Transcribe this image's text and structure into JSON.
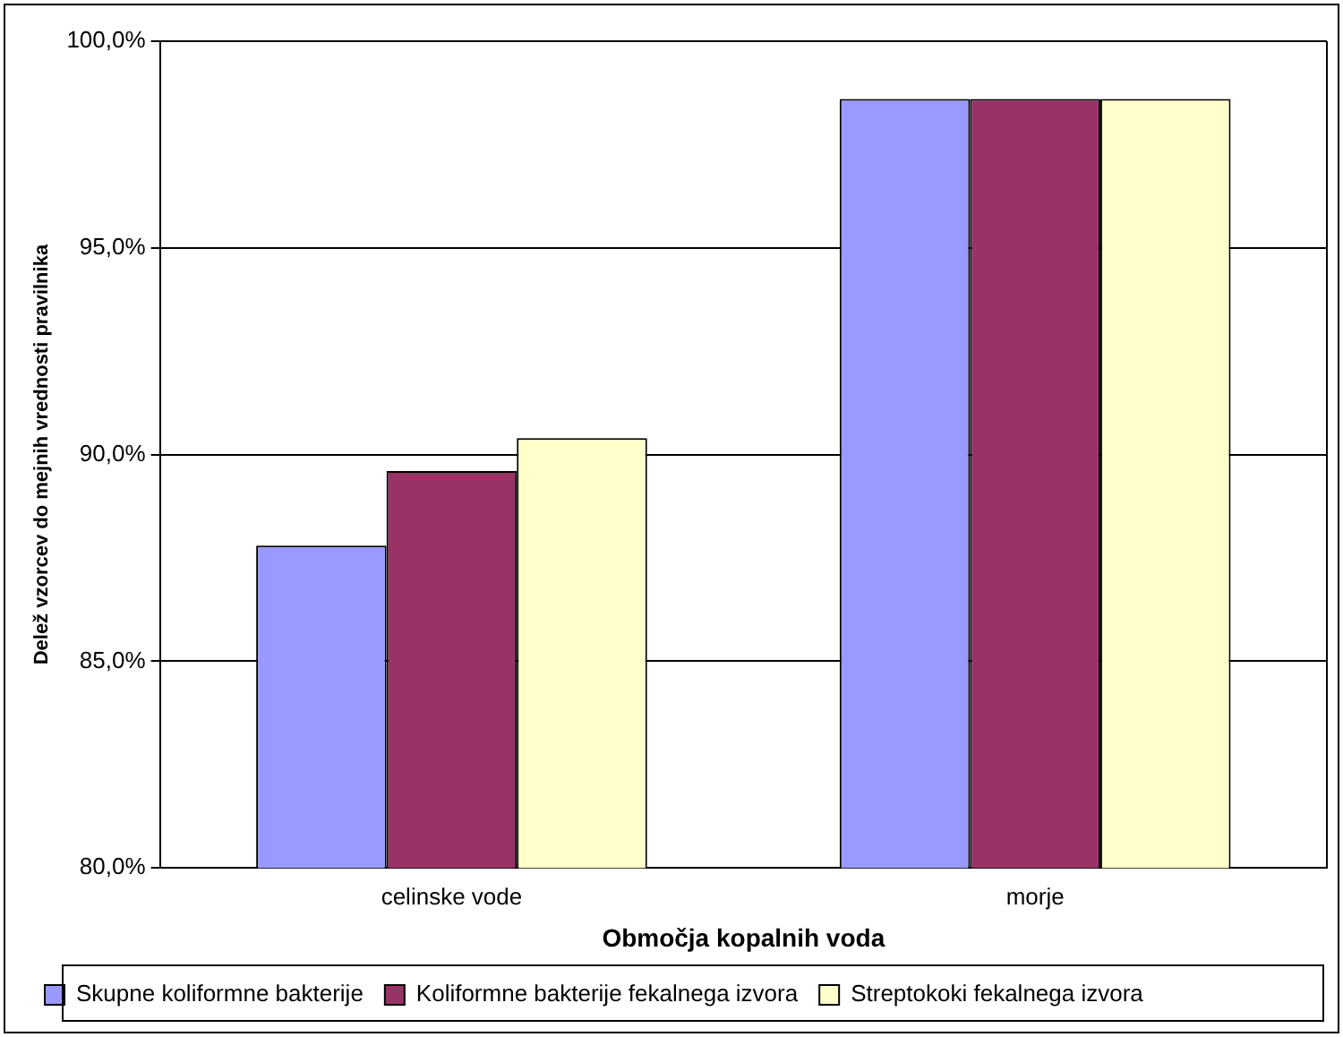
{
  "chart_data": {
    "type": "bar",
    "xlabel": "Območja kopalnih voda",
    "ylabel": "Delež vzorcev do mejnih vrednosti pravilnika",
    "categories": [
      "celinske vode",
      "morje"
    ],
    "series": [
      {
        "name": "Skupne koliformne bakterije",
        "color": "#9999ff",
        "values": [
          87.8,
          98.6
        ]
      },
      {
        "name": "Koliformne bakterije fekalnega izvora",
        "color": "#993366",
        "values": [
          89.6,
          98.6
        ]
      },
      {
        "name": "Streptokoki fekalnega izvora",
        "color": "#ffffcc",
        "values": [
          90.4,
          98.6
        ]
      }
    ],
    "ylim": [
      80,
      100
    ],
    "yticks": [
      {
        "value": 80,
        "label": "80,0%"
      },
      {
        "value": 85,
        "label": "85,0%"
      },
      {
        "value": 90,
        "label": "90,0%"
      },
      {
        "value": 95,
        "label": "95,0%"
      },
      {
        "value": 100,
        "label": "100,0%"
      }
    ],
    "grid": "y",
    "legend": "bottom"
  }
}
